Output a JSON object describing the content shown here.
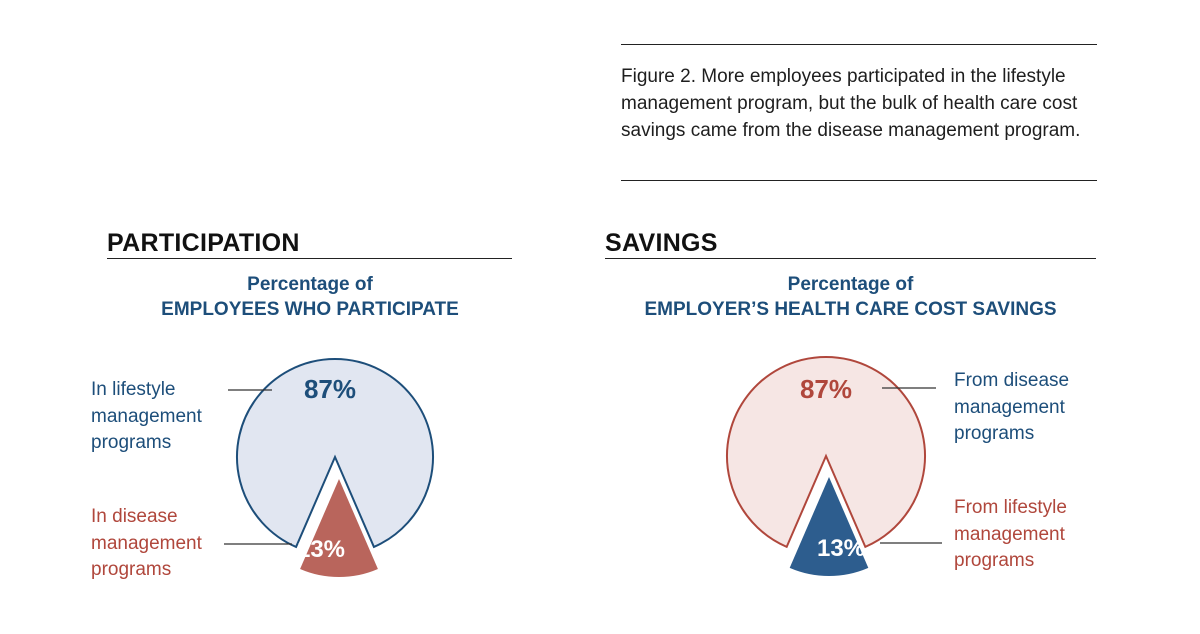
{
  "caption": {
    "text": "Figure 2. More employees participated in the lifestyle management program, but the bulk of health care cost savings came from the disease management program."
  },
  "colors": {
    "navy": "#1d4e7a",
    "dark_red": "#b0473c",
    "light_blue": "#e1e6f1",
    "light_pink": "#f6e6e4",
    "slice_red": "#b9655c",
    "slice_navy": "#2d5d8e"
  },
  "chart_data": [
    {
      "type": "pie",
      "title": "PARTICIPATION",
      "subtitle": [
        "Percentage of",
        "EMPLOYEES WHO PARTICIPATE"
      ],
      "slices": [
        {
          "label": "In lifestyle management programs",
          "value": 87,
          "value_label": "87%",
          "color": "#e1e6f1"
        },
        {
          "label": "In disease management programs",
          "value": 13,
          "value_label": "13%",
          "color": "#b9655c"
        }
      ]
    },
    {
      "type": "pie",
      "title": "SAVINGS",
      "subtitle": [
        "Percentage of",
        "EMPLOYER’S HEALTH CARE COST SAVINGS"
      ],
      "slices": [
        {
          "label": "From disease management programs",
          "value": 87,
          "value_label": "87%",
          "color": "#f6e6e4"
        },
        {
          "label": "From lifestyle management programs",
          "value": 13,
          "value_label": "13%",
          "color": "#2d5d8e"
        }
      ]
    }
  ],
  "callouts": {
    "participation_major": "In lifestyle\nmanagement\nprograms",
    "participation_minor": "In disease\nmanagement\nprograms",
    "savings_major": "From disease\nmanagement\nprograms",
    "savings_minor": "From lifestyle\nmanagement\nprograms"
  }
}
